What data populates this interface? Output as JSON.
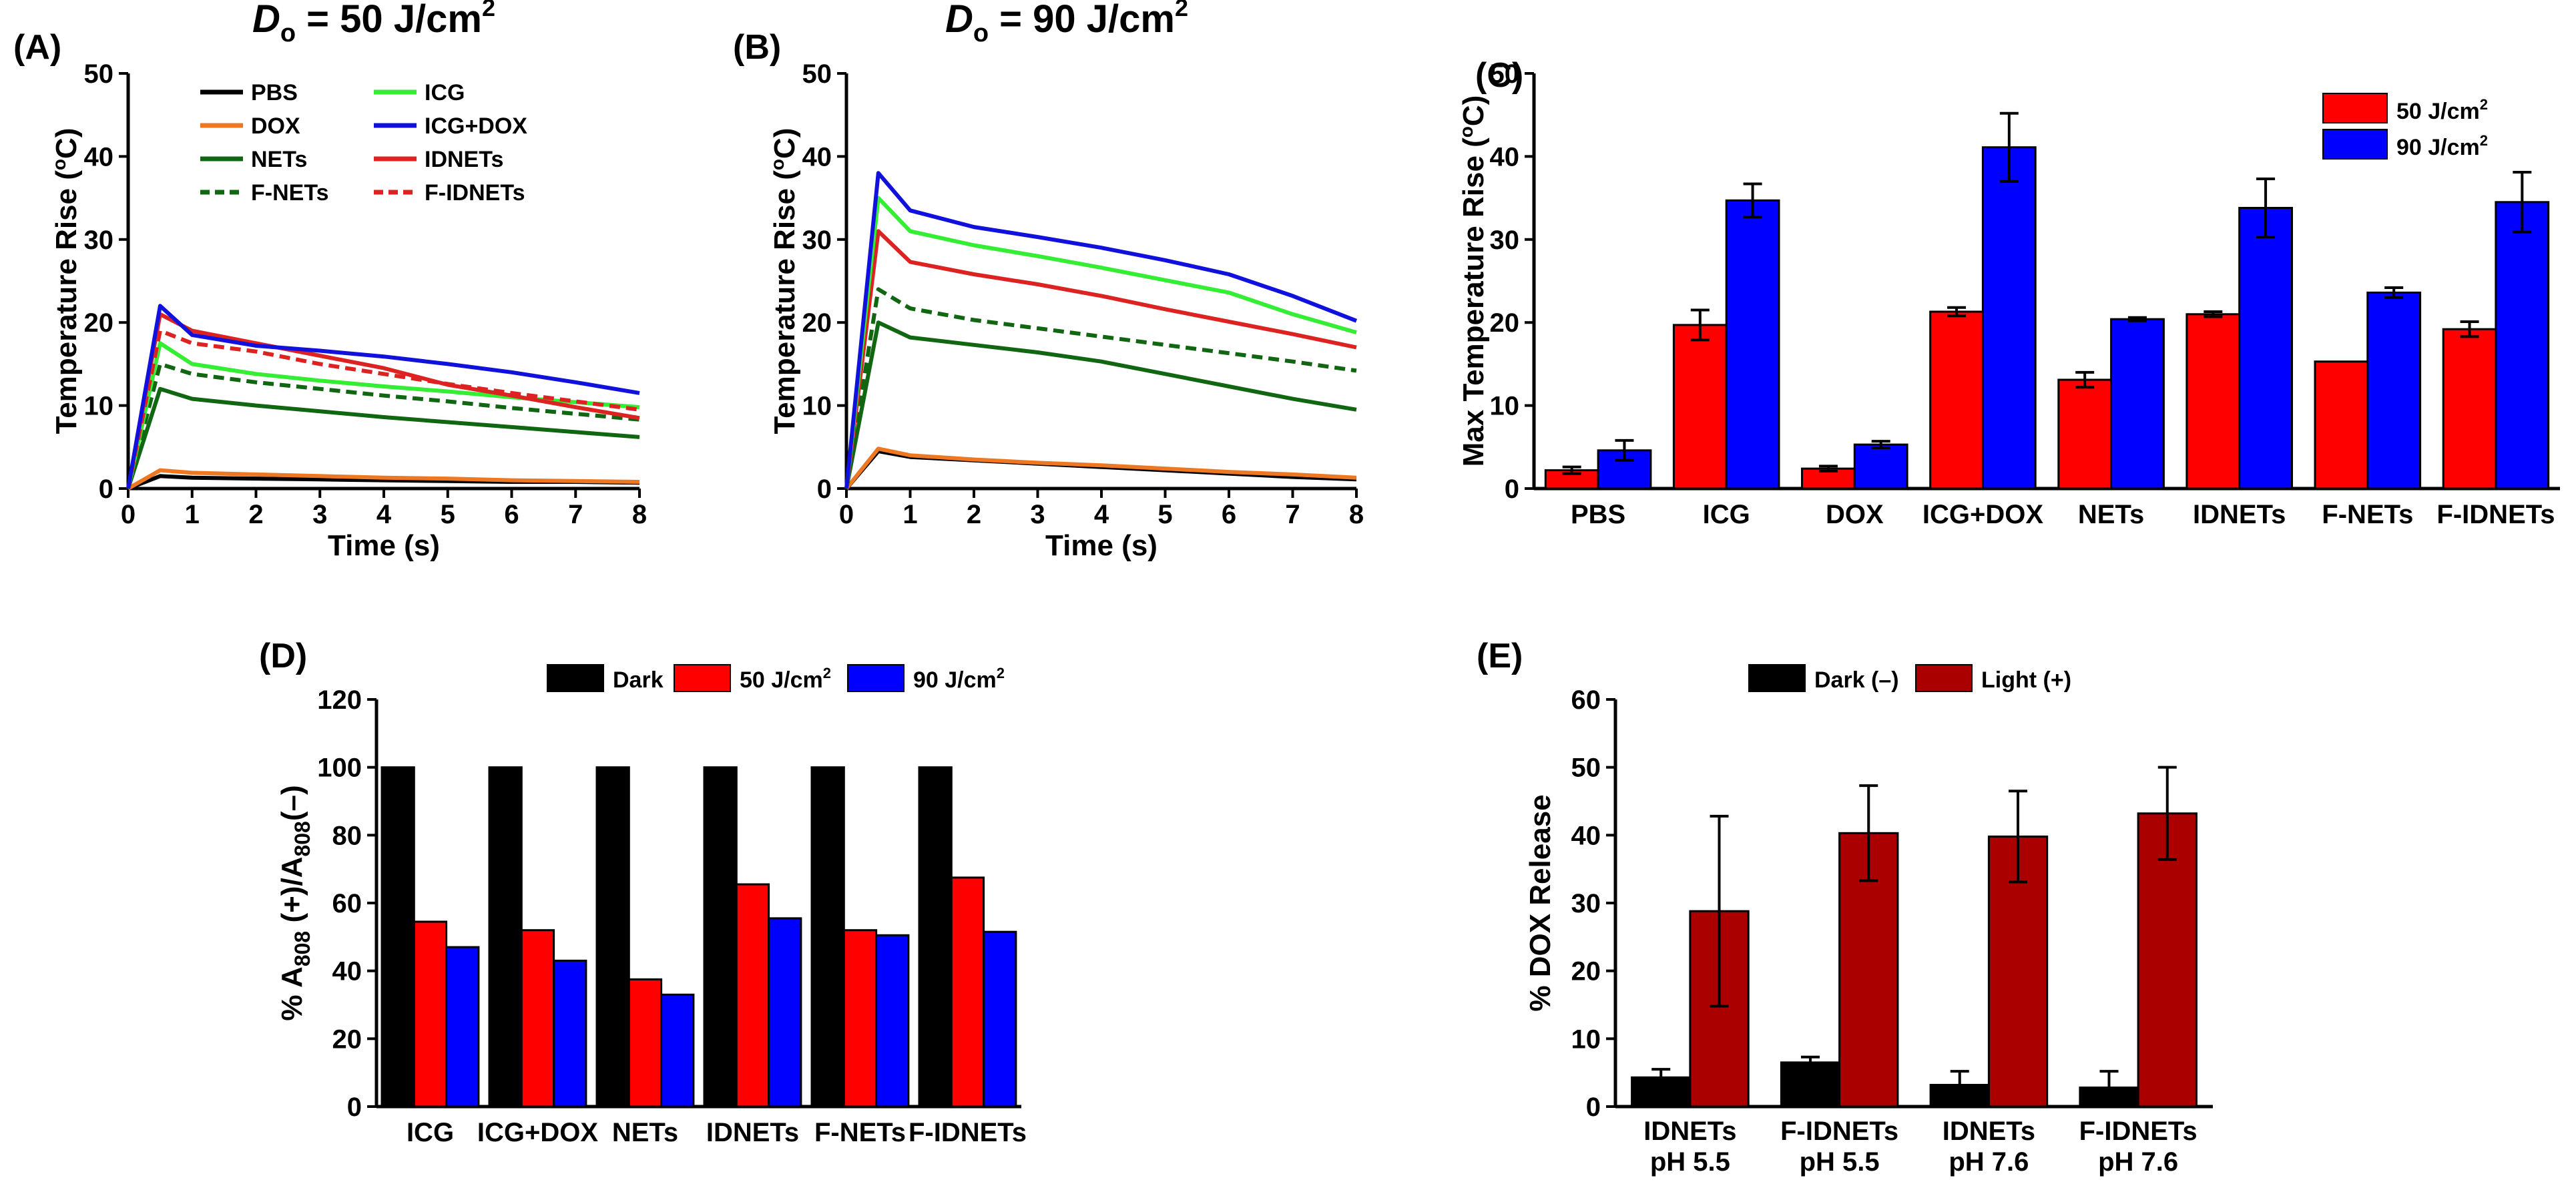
{
  "chart_data": [
    {
      "id": "A",
      "type": "line",
      "panel_label": "(A)",
      "title_main": "D",
      "title_sub": "o",
      "title_rest": " = 50 J/cm",
      "title_sup": "2",
      "xlabel": "Time (s)",
      "ylabel": "Temperature Rise (°C)",
      "xlim": [
        0,
        8
      ],
      "ylim": [
        0,
        50
      ],
      "xticks": [
        0,
        1,
        2,
        3,
        4,
        5,
        6,
        7,
        8
      ],
      "yticks": [
        0,
        10,
        20,
        30,
        40,
        50
      ],
      "legend": [
        {
          "label": "PBS",
          "color": "#000000",
          "dash": false
        },
        {
          "label": "ICG",
          "color": "#33ee33",
          "dash": false
        },
        {
          "label": "DOX",
          "color": "#ee7722",
          "dash": false
        },
        {
          "label": "ICG+DOX",
          "color": "#1111dd",
          "dash": false
        },
        {
          "label": "NETs",
          "color": "#116611",
          "dash": false
        },
        {
          "label": "IDNETs",
          "color": "#dd2222",
          "dash": false
        },
        {
          "label": "F-NETs",
          "color": "#116611",
          "dash": true
        },
        {
          "label": "F-IDNETs",
          "color": "#dd2222",
          "dash": true
        }
      ],
      "series": [
        {
          "name": "PBS",
          "color": "#000000",
          "dash": false,
          "x": [
            0,
            0.5,
            1,
            2,
            3,
            4,
            5,
            6,
            7,
            8
          ],
          "y": [
            0,
            1.5,
            1.3,
            1.2,
            1.1,
            1.0,
            0.9,
            0.8,
            0.8,
            0.7
          ]
        },
        {
          "name": "DOX",
          "color": "#ee7722",
          "dash": false,
          "x": [
            0,
            0.5,
            1,
            2,
            3,
            4,
            5,
            6,
            7,
            8
          ],
          "y": [
            0,
            2.2,
            1.9,
            1.7,
            1.5,
            1.3,
            1.2,
            1.0,
            0.9,
            0.8
          ]
        },
        {
          "name": "NETs",
          "color": "#116611",
          "dash": false,
          "x": [
            0,
            0.5,
            1,
            2,
            3,
            4,
            5,
            6,
            7,
            8
          ],
          "y": [
            0,
            12.0,
            10.8,
            10.0,
            9.3,
            8.6,
            8.0,
            7.4,
            6.8,
            6.2
          ]
        },
        {
          "name": "F-NETs",
          "color": "#116611",
          "dash": true,
          "x": [
            0,
            0.5,
            1,
            2,
            3,
            4,
            5,
            6,
            7,
            8
          ],
          "y": [
            0,
            15.0,
            13.8,
            12.8,
            12.0,
            11.2,
            10.5,
            9.7,
            9.0,
            8.3
          ]
        },
        {
          "name": "ICG",
          "color": "#33ee33",
          "dash": false,
          "x": [
            0,
            0.5,
            1,
            2,
            3,
            4,
            5,
            6,
            7,
            8
          ],
          "y": [
            0,
            17.5,
            15.0,
            13.8,
            13.0,
            12.3,
            11.7,
            11.0,
            10.4,
            9.8
          ]
        },
        {
          "name": "F-IDNETs",
          "color": "#dd2222",
          "dash": true,
          "x": [
            0,
            0.5,
            1,
            2,
            3,
            4,
            5,
            6,
            7,
            8
          ],
          "y": [
            0,
            19.0,
            17.5,
            16.5,
            15.0,
            13.8,
            12.6,
            11.5,
            10.5,
            9.5
          ]
        },
        {
          "name": "IDNETs",
          "color": "#dd2222",
          "dash": false,
          "x": [
            0,
            0.5,
            1,
            2,
            3,
            4,
            5,
            6,
            7,
            8
          ],
          "y": [
            0,
            21.0,
            19.0,
            17.5,
            16.0,
            14.5,
            12.5,
            11.2,
            9.8,
            8.5
          ]
        },
        {
          "name": "ICG+DOX",
          "color": "#1111dd",
          "dash": false,
          "x": [
            0,
            0.5,
            1,
            2,
            3,
            4,
            5,
            6,
            7,
            8
          ],
          "y": [
            0,
            22.0,
            18.5,
            17.2,
            16.6,
            15.9,
            15.0,
            14.0,
            12.8,
            11.5
          ]
        }
      ]
    },
    {
      "id": "B",
      "type": "line",
      "panel_label": "(B)",
      "title_main": "D",
      "title_sub": "o",
      "title_rest": " = 90 J/cm",
      "title_sup": "2",
      "xlabel": "Time (s)",
      "ylabel": "Temperature Rise (°C)",
      "xlim": [
        0,
        8
      ],
      "ylim": [
        0,
        50
      ],
      "xticks": [
        0,
        1,
        2,
        3,
        4,
        5,
        6,
        7,
        8
      ],
      "yticks": [
        0,
        10,
        20,
        30,
        40,
        50
      ],
      "series": [
        {
          "name": "PBS",
          "color": "#000000",
          "dash": false,
          "x": [
            0,
            0.5,
            1,
            2,
            3,
            4,
            5,
            6,
            7,
            8
          ],
          "y": [
            0,
            4.5,
            3.8,
            3.4,
            3.0,
            2.6,
            2.2,
            1.8,
            1.4,
            1.1
          ]
        },
        {
          "name": "DOX",
          "color": "#ee7722",
          "dash": false,
          "x": [
            0,
            0.5,
            1,
            2,
            3,
            4,
            5,
            6,
            7,
            8
          ],
          "y": [
            0,
            4.8,
            4.0,
            3.5,
            3.1,
            2.8,
            2.4,
            2.0,
            1.7,
            1.3
          ]
        },
        {
          "name": "NETs",
          "color": "#116611",
          "dash": false,
          "x": [
            0,
            0.5,
            1,
            2,
            3,
            4,
            5,
            6,
            7,
            8
          ],
          "y": [
            0,
            20.0,
            18.2,
            17.3,
            16.4,
            15.3,
            13.8,
            12.3,
            10.8,
            9.5
          ]
        },
        {
          "name": "F-NETs",
          "color": "#116611",
          "dash": true,
          "x": [
            0,
            0.5,
            1,
            2,
            3,
            4,
            5,
            6,
            7,
            8
          ],
          "y": [
            0,
            24.0,
            21.7,
            20.3,
            19.3,
            18.3,
            17.3,
            16.3,
            15.3,
            14.2
          ]
        },
        {
          "name": "IDNETs",
          "color": "#dd2222",
          "dash": false,
          "x": [
            0,
            0.5,
            1,
            2,
            3,
            4,
            5,
            6,
            7,
            8
          ],
          "y": [
            0,
            31.0,
            27.3,
            25.8,
            24.6,
            23.2,
            21.6,
            20.1,
            18.6,
            17.0
          ]
        },
        {
          "name": "ICG",
          "color": "#33ee33",
          "dash": false,
          "x": [
            0,
            0.5,
            1,
            2,
            3,
            4,
            5,
            6,
            7,
            8
          ],
          "y": [
            0,
            35.0,
            31.0,
            29.3,
            28.0,
            26.6,
            25.1,
            23.6,
            21.0,
            18.8
          ]
        },
        {
          "name": "ICG+DOX",
          "color": "#1111dd",
          "dash": false,
          "x": [
            0,
            0.5,
            1,
            2,
            3,
            4,
            5,
            6,
            7,
            8
          ],
          "y": [
            0,
            38.0,
            33.5,
            31.5,
            30.3,
            29.0,
            27.5,
            25.8,
            23.2,
            20.2
          ]
        }
      ]
    },
    {
      "id": "C",
      "type": "bar",
      "panel_label": "(C)",
      "ylabel": "Max Temperature Rise (°C)",
      "ylim": [
        0,
        50
      ],
      "yticks": [
        0,
        10,
        20,
        30,
        40,
        50
      ],
      "categories": [
        "PBS",
        "ICG",
        "DOX",
        "ICG+DOX",
        "NETs",
        "IDNETs",
        "F-NETs",
        "F-IDNETs"
      ],
      "series": [
        {
          "name": "50 J/cm²",
          "label": "50 J/cm",
          "sup": "2",
          "color": "#ff0000",
          "values": [
            2.2,
            19.7,
            2.4,
            21.3,
            13.1,
            21.0,
            15.3,
            19.2
          ],
          "errors": [
            0.4,
            1.8,
            0.3,
            0.5,
            0.9,
            0.3,
            0.0,
            0.9
          ]
        },
        {
          "name": "90 J/cm²",
          "label": "90 J/cm",
          "sup": "2",
          "color": "#0000ff",
          "values": [
            4.6,
            34.7,
            5.3,
            41.1,
            20.4,
            33.8,
            23.6,
            34.5
          ],
          "errors": [
            1.2,
            2.0,
            0.4,
            4.1,
            0.2,
            3.5,
            0.6,
            3.6
          ]
        }
      ]
    },
    {
      "id": "D",
      "type": "bar",
      "panel_label": "(D)",
      "ylabel_pre": "% A",
      "ylabel_sub1": "808",
      "ylabel_mid": " (+)/A",
      "ylabel_sub2": "808",
      "ylabel_post": "(–)",
      "ylim": [
        0,
        120
      ],
      "yticks": [
        0,
        20,
        40,
        60,
        80,
        100,
        120
      ],
      "categories": [
        "ICG",
        "ICG+DOX",
        "NETs",
        "IDNETs",
        "F-NETs",
        "F-IDNETs"
      ],
      "series": [
        {
          "name": "Dark",
          "label": "Dark",
          "sup": "",
          "color": "#000000",
          "values": [
            100,
            100,
            100,
            100,
            100,
            100
          ]
        },
        {
          "name": "50 J/cm²",
          "label": "50 J/cm",
          "sup": "2",
          "color": "#ff0000",
          "values": [
            54.5,
            52.0,
            37.5,
            65.5,
            52.0,
            67.5
          ]
        },
        {
          "name": "90 J/cm²",
          "label": "90 J/cm",
          "sup": "2",
          "color": "#0000ff",
          "values": [
            47.0,
            43.0,
            33.0,
            55.5,
            50.5,
            51.5
          ]
        }
      ]
    },
    {
      "id": "E",
      "type": "bar",
      "panel_label": "(E)",
      "ylabel": "% DOX Release",
      "ylim": [
        0,
        60
      ],
      "yticks": [
        0,
        10,
        20,
        30,
        40,
        50,
        60
      ],
      "categories": [
        "IDNETs pH 5.5",
        "F-IDNETs pH 5.5",
        "IDNETs pH 7.6",
        "F-IDNETs pH 7.6"
      ],
      "category_lines": [
        [
          "IDNETs",
          "pH 5.5"
        ],
        [
          "F-IDNETs",
          "pH 5.5"
        ],
        [
          "IDNETs",
          "pH 7.6"
        ],
        [
          "F-IDNETs",
          "pH 7.6"
        ]
      ],
      "series": [
        {
          "name": "Dark (–)",
          "label": "Dark (–)",
          "sup": "",
          "color": "#000000",
          "values": [
            4.3,
            6.5,
            3.2,
            2.8
          ],
          "errors": [
            1.2,
            0.8,
            2.0,
            2.4
          ]
        },
        {
          "name": "Light (+)",
          "label": "Light (+)",
          "sup": "",
          "color": "#aa0000",
          "values": [
            28.8,
            40.3,
            39.8,
            43.2
          ],
          "errors": [
            14.0,
            7.0,
            6.7,
            6.8
          ]
        }
      ]
    }
  ]
}
